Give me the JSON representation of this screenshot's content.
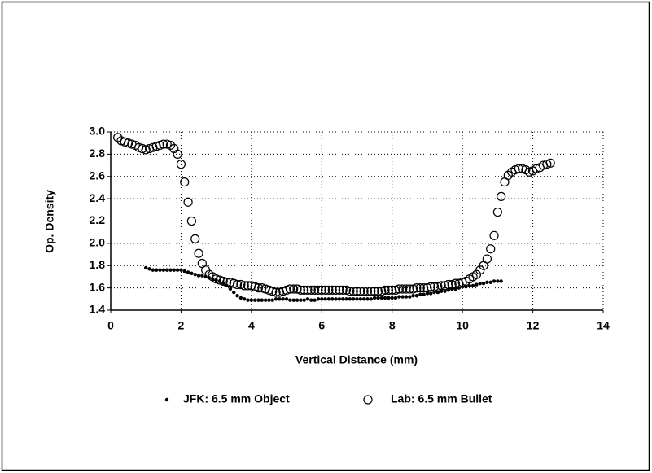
{
  "chart_data": {
    "type": "scatter",
    "x_label": "Vertical Distance (mm)",
    "y_label": "Op. Density",
    "xlim": [
      0,
      14
    ],
    "xticks": [
      0,
      2,
      4,
      6,
      8,
      10,
      12,
      14
    ],
    "ylim": [
      1.4,
      3.0
    ],
    "yticks": [
      1.4,
      1.6,
      1.8,
      {
        "value": 2,
        "label": "2.0"
      },
      2.2,
      2.4,
      2.6,
      2.8,
      {
        "value": 3,
        "label": "3.0"
      }
    ],
    "grid": true,
    "legend": "bottom",
    "series": [
      {
        "name": "JFK: 6.5 mm Object",
        "color": "#000000",
        "marker": "dot",
        "x": [
          1,
          1.1,
          1.2,
          1.3,
          1.4,
          1.5,
          1.6,
          1.7,
          1.8,
          1.9,
          2,
          2.1,
          2.2,
          2.3,
          2.4,
          2.5,
          2.6,
          2.7,
          2.8,
          2.9,
          3,
          3.1,
          3.2,
          3.3,
          3.4,
          3.5,
          3.6,
          3.7,
          3.8,
          3.9,
          4,
          4.1,
          4.2,
          4.3,
          4.4,
          4.5,
          4.6,
          4.7,
          4.8,
          4.9,
          5,
          5.1,
          5.2,
          5.3,
          5.4,
          5.5,
          5.6,
          5.7,
          5.8,
          5.9,
          6,
          6.1,
          6.2,
          6.3,
          6.4,
          6.5,
          6.6,
          6.7,
          6.8,
          6.9,
          7,
          7.1,
          7.2,
          7.3,
          7.4,
          7.5,
          7.6,
          7.7,
          7.8,
          7.9,
          8,
          8.1,
          8.2,
          8.3,
          8.4,
          8.5,
          8.6,
          8.7,
          8.8,
          8.9,
          9,
          9.1,
          9.2,
          9.3,
          9.4,
          9.5,
          9.6,
          9.7,
          9.8,
          9.9,
          10,
          10.1,
          10.2,
          10.3,
          10.4,
          10.5,
          10.6,
          10.7,
          10.8,
          10.9,
          11,
          11.1
        ],
        "values": [
          1.78,
          1.77,
          1.76,
          1.76,
          1.76,
          1.76,
          1.76,
          1.76,
          1.76,
          1.76,
          1.76,
          1.75,
          1.74,
          1.73,
          1.72,
          1.71,
          1.71,
          1.7,
          1.69,
          1.68,
          1.67,
          1.66,
          1.64,
          1.62,
          1.59,
          1.56,
          1.53,
          1.51,
          1.5,
          1.49,
          1.49,
          1.49,
          1.49,
          1.49,
          1.49,
          1.49,
          1.49,
          1.5,
          1.5,
          1.5,
          1.5,
          1.49,
          1.49,
          1.49,
          1.49,
          1.49,
          1.5,
          1.49,
          1.49,
          1.5,
          1.5,
          1.5,
          1.5,
          1.5,
          1.5,
          1.5,
          1.5,
          1.5,
          1.5,
          1.5,
          1.5,
          1.5,
          1.5,
          1.5,
          1.5,
          1.51,
          1.51,
          1.51,
          1.51,
          1.51,
          1.51,
          1.51,
          1.52,
          1.52,
          1.52,
          1.52,
          1.53,
          1.53,
          1.54,
          1.54,
          1.55,
          1.55,
          1.56,
          1.56,
          1.57,
          1.57,
          1.58,
          1.59,
          1.59,
          1.6,
          1.61,
          1.61,
          1.62,
          1.62,
          1.63,
          1.64,
          1.64,
          1.65,
          1.65,
          1.66,
          1.66,
          1.66
        ]
      },
      {
        "name": "Lab: 6.5 mm Bullet",
        "color": "#000000",
        "marker": "circle",
        "x": [
          0.2,
          0.3,
          0.4,
          0.5,
          0.6,
          0.7,
          0.8,
          0.9,
          1,
          1.1,
          1.2,
          1.3,
          1.4,
          1.5,
          1.6,
          1.7,
          1.8,
          1.9,
          2,
          2.1,
          2.2,
          2.3,
          2.4,
          2.5,
          2.6,
          2.7,
          2.8,
          2.9,
          3,
          3.1,
          3.2,
          3.3,
          3.4,
          3.5,
          3.6,
          3.7,
          3.8,
          3.9,
          4,
          4.1,
          4.2,
          4.3,
          4.4,
          4.5,
          4.6,
          4.7,
          4.8,
          4.9,
          5,
          5.1,
          5.2,
          5.3,
          5.4,
          5.5,
          5.6,
          5.7,
          5.8,
          5.9,
          6,
          6.1,
          6.2,
          6.3,
          6.4,
          6.5,
          6.6,
          6.7,
          6.8,
          6.9,
          7,
          7.1,
          7.2,
          7.3,
          7.4,
          7.5,
          7.6,
          7.7,
          7.8,
          7.9,
          8,
          8.1,
          8.2,
          8.3,
          8.4,
          8.5,
          8.6,
          8.7,
          8.8,
          8.9,
          9,
          9.1,
          9.2,
          9.3,
          9.4,
          9.5,
          9.6,
          9.7,
          9.8,
          9.9,
          10,
          10.1,
          10.2,
          10.3,
          10.4,
          10.5,
          10.6,
          10.7,
          10.8,
          10.9,
          11,
          11.1,
          11.2,
          11.3,
          11.4,
          11.5,
          11.6,
          11.7,
          11.8,
          11.9,
          12,
          12.1,
          12.2,
          12.3,
          12.4,
          12.5
        ],
        "values": [
          2.95,
          2.92,
          2.91,
          2.9,
          2.89,
          2.88,
          2.86,
          2.85,
          2.84,
          2.85,
          2.86,
          2.87,
          2.88,
          2.89,
          2.89,
          2.88,
          2.85,
          2.8,
          2.71,
          2.55,
          2.37,
          2.2,
          2.04,
          1.91,
          1.82,
          1.76,
          1.72,
          1.7,
          1.68,
          1.67,
          1.66,
          1.65,
          1.65,
          1.64,
          1.63,
          1.63,
          1.62,
          1.62,
          1.62,
          1.61,
          1.6,
          1.6,
          1.59,
          1.58,
          1.57,
          1.56,
          1.56,
          1.57,
          1.58,
          1.59,
          1.59,
          1.59,
          1.58,
          1.58,
          1.58,
          1.58,
          1.58,
          1.58,
          1.58,
          1.58,
          1.58,
          1.58,
          1.58,
          1.58,
          1.58,
          1.58,
          1.57,
          1.57,
          1.57,
          1.57,
          1.57,
          1.57,
          1.57,
          1.57,
          1.57,
          1.57,
          1.58,
          1.58,
          1.58,
          1.58,
          1.59,
          1.59,
          1.59,
          1.59,
          1.59,
          1.6,
          1.6,
          1.6,
          1.6,
          1.61,
          1.61,
          1.61,
          1.62,
          1.62,
          1.63,
          1.63,
          1.64,
          1.64,
          1.65,
          1.66,
          1.68,
          1.7,
          1.72,
          1.76,
          1.8,
          1.86,
          1.95,
          2.07,
          2.28,
          2.42,
          2.55,
          2.61,
          2.64,
          2.66,
          2.67,
          2.67,
          2.66,
          2.64,
          2.65,
          2.67,
          2.68,
          2.7,
          2.71,
          2.72
        ]
      }
    ]
  }
}
